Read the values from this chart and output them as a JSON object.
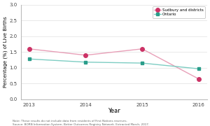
{
  "years": [
    2013,
    2014,
    2015,
    2016
  ],
  "sudbury_values": [
    1.6,
    1.4,
    1.6,
    0.65
  ],
  "ontario_values": [
    1.28,
    1.18,
    1.15,
    0.97
  ],
  "sudbury_color": "#cc3366",
  "sudbury_line_color": "#e8a0b8",
  "ontario_color": "#2a9d8a",
  "ontario_line_color": "#7ecdc3",
  "sudbury_label": "Sudbury and districts",
  "ontario_label": "Ontario",
  "ylabel": "Percentage (%) of Live Births",
  "xlabel": "Year",
  "ylim": [
    0.0,
    3.0
  ],
  "yticks": [
    0.0,
    0.5,
    1.0,
    1.5,
    2.0,
    2.5,
    3.0
  ],
  "note_line1": "Note: These results do not include data from residents of First Nations reserves.",
  "note_line2": "Source: BORN Information System, Better Outcomes Registry Network. Extracted March, 2017.",
  "background_color": "#ffffff",
  "grid_color": "#e0e0e0"
}
